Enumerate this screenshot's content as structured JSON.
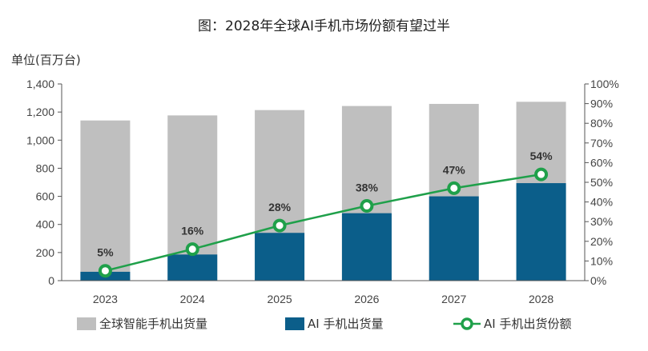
{
  "chart_data": {
    "type": "bar",
    "title": "图：2028年全球AI手机市场份额有望过半",
    "ylabel": "单位(百万台)",
    "categories": [
      "2023",
      "2024",
      "2025",
      "2026",
      "2027",
      "2028"
    ],
    "ylim": [
      0,
      1400
    ],
    "yticks": [
      "0",
      "200",
      "400",
      "600",
      "800",
      "1,000",
      "1,200",
      "1,400"
    ],
    "y2lim": [
      0,
      100
    ],
    "y2ticks": [
      "0%",
      "10%",
      "20%",
      "30%",
      "40%",
      "50%",
      "60%",
      "70%",
      "80%",
      "90%",
      "100%"
    ],
    "grid": false,
    "legend_placement": "bottom",
    "series": [
      {
        "name": "全球智能手机出货量",
        "type": "bar",
        "axis": "left",
        "color": "#bfbfbf",
        "values": [
          1140,
          1176,
          1214,
          1243,
          1258,
          1273
        ]
      },
      {
        "name": "AI 手机出货量",
        "type": "bar",
        "axis": "left",
        "color": "#0b5e8a",
        "values": [
          63,
          186,
          340,
          480,
          600,
          694
        ]
      },
      {
        "name": "AI 手机出货份额",
        "type": "line",
        "axis": "right",
        "color": "#1fa04a",
        "values": [
          5,
          16,
          28,
          38,
          47,
          54
        ],
        "labels": [
          "5%",
          "16%",
          "28%",
          "38%",
          "47%",
          "54%"
        ]
      }
    ]
  }
}
